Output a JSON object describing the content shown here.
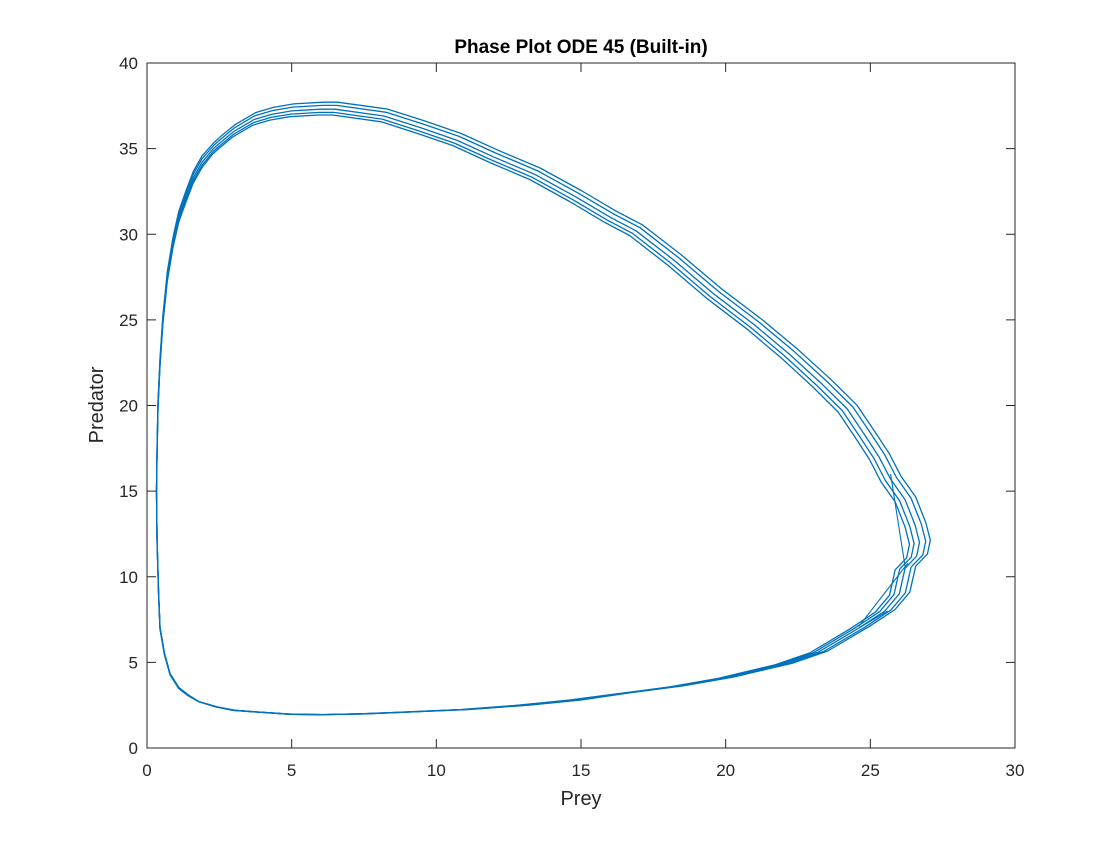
{
  "chart_data": {
    "type": "line",
    "title": "Phase Plot ODE 45 (Built-in)",
    "xlabel": "Prey",
    "ylabel": "Predator",
    "xlim": [
      0,
      30
    ],
    "ylim": [
      0,
      40
    ],
    "xticks": [
      0,
      5,
      10,
      15,
      20,
      25,
      30
    ],
    "yticks": [
      0,
      5,
      10,
      15,
      20,
      25,
      30,
      35,
      40
    ],
    "xtick_labels": [
      "0",
      "5",
      "10",
      "15",
      "20",
      "25",
      "30"
    ],
    "ytick_labels": [
      "0",
      "5",
      "10",
      "15",
      "20",
      "25",
      "30",
      "35",
      "40"
    ],
    "grid": false,
    "line_color": "#0072BD",
    "series": [
      {
        "x": [
          26.2,
          26.0,
          25.5,
          24.6,
          23.2,
          22.0,
          20.0,
          18.3,
          16.5,
          14.8,
          13.0,
          11.0,
          9.0,
          7.5,
          6.1,
          5.0,
          3.8,
          3.0,
          2.4,
          1.8,
          1.4,
          1.1,
          0.8,
          0.6,
          0.45,
          0.4,
          0.35,
          0.33,
          0.35,
          0.38,
          0.45,
          0.55,
          0.7,
          0.9,
          1.1,
          1.35,
          1.6,
          1.9,
          2.3,
          2.5,
          3.0,
          3.7,
          4.3,
          5.0,
          6.0,
          6.5,
          8.2,
          9.5,
          10.7,
          12.0,
          13.4,
          14.8,
          16.0,
          16.9,
          18.2,
          19.6,
          21.0,
          22.2,
          23.3,
          24.2,
          24.8,
          25.3,
          25.7,
          26.2,
          26.55,
          26.7,
          26.6,
          26.2
        ],
        "y": [
          10.5,
          9.0,
          8.0,
          7.0,
          5.6,
          4.9,
          4.1,
          3.6,
          3.2,
          2.8,
          2.5,
          2.25,
          2.1,
          2.0,
          1.95,
          1.97,
          2.1,
          2.2,
          2.4,
          2.7,
          3.1,
          3.5,
          4.3,
          5.5,
          7.0,
          9.0,
          12.0,
          15.0,
          17.5,
          20.0,
          22.5,
          25.0,
          27.5,
          29.5,
          31.0,
          32.2,
          33.3,
          34.2,
          35.0,
          35.3,
          36.0,
          36.7,
          37.0,
          37.2,
          37.3,
          37.3,
          36.9,
          36.2,
          35.5,
          34.5,
          33.5,
          32.2,
          31.0,
          30.2,
          28.5,
          26.5,
          24.7,
          23.0,
          21.3,
          19.8,
          18.3,
          17.0,
          15.7,
          14.5,
          13.0,
          12.0,
          11.2,
          10.5
        ]
      }
    ]
  }
}
